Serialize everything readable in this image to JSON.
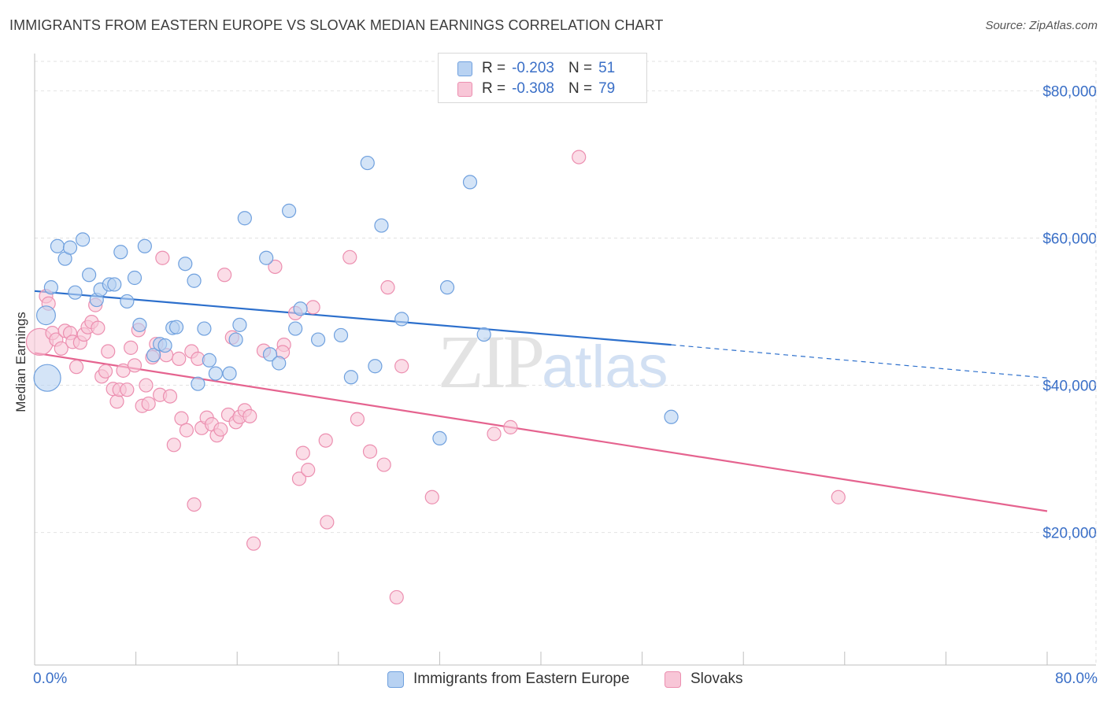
{
  "chart_data": {
    "type": "scatter",
    "title": "IMMIGRANTS FROM EASTERN EUROPE VS SLOVAK MEDIAN EARNINGS CORRELATION CHART",
    "source": "Source: ZipAtlas.com",
    "xlabel": "",
    "ylabel": "Median Earnings",
    "xlim": [
      0,
      80
    ],
    "ylim": [
      2000,
      84000
    ],
    "x_tick_labels": [
      "0.0%",
      "80.0%"
    ],
    "y_ticks": [
      20000,
      40000,
      60000,
      80000
    ],
    "y_tick_labels": [
      "$20,000",
      "$40,000",
      "$60,000",
      "$80,000"
    ],
    "grid": true,
    "legend_position": "top-center",
    "watermark": {
      "zip": "ZIP",
      "atlas": "atlas"
    },
    "series": [
      {
        "name": "Immigrants from Eastern Europe",
        "color": "#6fa0de",
        "fill": "#b8d2f2",
        "R": "-0.203",
        "N": "51",
        "trend": {
          "x0": 0,
          "y0": 52800,
          "x1": 50.3,
          "y1": 45500,
          "dash_to_x": 80,
          "dash_to_y": 41000,
          "color": "#2c6fcc"
        },
        "points": [
          [
            1.0,
            41000,
            2
          ],
          [
            0.9,
            49500,
            1.4
          ],
          [
            1.3,
            53300,
            1
          ],
          [
            1.8,
            58900,
            1
          ],
          [
            2.4,
            57200,
            1
          ],
          [
            2.8,
            58700,
            1
          ],
          [
            3.2,
            52600,
            1
          ],
          [
            3.8,
            59800,
            1
          ],
          [
            4.3,
            55000,
            1
          ],
          [
            4.9,
            51600,
            1
          ],
          [
            5.2,
            53000,
            1
          ],
          [
            5.9,
            53700,
            1
          ],
          [
            6.3,
            53700,
            1
          ],
          [
            6.8,
            58100,
            1
          ],
          [
            7.3,
            51400,
            1
          ],
          [
            7.9,
            54600,
            1
          ],
          [
            8.3,
            48200,
            1
          ],
          [
            8.7,
            58900,
            1
          ],
          [
            9.4,
            44100,
            1
          ],
          [
            9.9,
            45600,
            1
          ],
          [
            10.3,
            45400,
            1
          ],
          [
            10.9,
            47800,
            1
          ],
          [
            11.2,
            47900,
            1
          ],
          [
            11.9,
            56500,
            1
          ],
          [
            12.6,
            54200,
            1
          ],
          [
            12.9,
            40200,
            1
          ],
          [
            13.4,
            47700,
            1
          ],
          [
            13.8,
            43400,
            1
          ],
          [
            14.3,
            41600,
            1
          ],
          [
            15.4,
            41600,
            1
          ],
          [
            15.9,
            46200,
            1
          ],
          [
            16.2,
            48200,
            1
          ],
          [
            16.6,
            62700,
            1
          ],
          [
            18.3,
            57300,
            1
          ],
          [
            18.6,
            44200,
            1
          ],
          [
            19.3,
            43000,
            1
          ],
          [
            20.1,
            63700,
            1
          ],
          [
            20.6,
            47700,
            1
          ],
          [
            21.0,
            50400,
            1
          ],
          [
            22.4,
            46200,
            1
          ],
          [
            24.2,
            46800,
            1
          ],
          [
            25.0,
            41100,
            1
          ],
          [
            26.3,
            70200,
            1
          ],
          [
            26.9,
            42600,
            1
          ],
          [
            27.4,
            61700,
            1
          ],
          [
            29.0,
            49000,
            1
          ],
          [
            32.0,
            32800,
            1
          ],
          [
            32.6,
            53300,
            1
          ],
          [
            34.4,
            67600,
            1
          ],
          [
            35.5,
            46900,
            1
          ],
          [
            50.3,
            35700,
            1
          ]
        ]
      },
      {
        "name": "Slovaks",
        "color": "#ec8fb0",
        "fill": "#f8c6d7",
        "R": "-0.308",
        "N": "79",
        "trend": {
          "x0": 0,
          "y0": 44400,
          "x1": 80,
          "y1": 22900,
          "color": "#e5638f"
        },
        "points": [
          [
            0.4,
            45900,
            2
          ],
          [
            0.9,
            52100,
            1
          ],
          [
            1.1,
            51100,
            1
          ],
          [
            1.4,
            47100,
            1
          ],
          [
            1.7,
            46200,
            1
          ],
          [
            2.1,
            45000,
            1
          ],
          [
            2.4,
            47400,
            1
          ],
          [
            2.8,
            47100,
            1
          ],
          [
            3.0,
            45900,
            1
          ],
          [
            3.3,
            42500,
            1
          ],
          [
            3.6,
            45800,
            1
          ],
          [
            3.9,
            46900,
            1
          ],
          [
            4.2,
            47900,
            1
          ],
          [
            4.5,
            48600,
            1
          ],
          [
            4.8,
            50900,
            1
          ],
          [
            5.0,
            47800,
            1
          ],
          [
            5.3,
            41200,
            1
          ],
          [
            5.6,
            41900,
            1
          ],
          [
            5.8,
            44600,
            1
          ],
          [
            6.2,
            39500,
            1
          ],
          [
            6.5,
            37800,
            1
          ],
          [
            6.7,
            39400,
            1
          ],
          [
            7.0,
            42000,
            1
          ],
          [
            7.3,
            39400,
            1
          ],
          [
            7.6,
            45100,
            1
          ],
          [
            7.9,
            42700,
            1
          ],
          [
            8.2,
            47500,
            1
          ],
          [
            8.5,
            37200,
            1
          ],
          [
            8.8,
            40000,
            1
          ],
          [
            9.0,
            37500,
            1
          ],
          [
            9.3,
            43800,
            1
          ],
          [
            9.6,
            45600,
            1
          ],
          [
            9.9,
            38700,
            1
          ],
          [
            10.1,
            57300,
            1
          ],
          [
            10.4,
            44100,
            1
          ],
          [
            10.7,
            38500,
            1
          ],
          [
            11.0,
            31900,
            1
          ],
          [
            11.4,
            43600,
            1
          ],
          [
            11.6,
            35500,
            1
          ],
          [
            12.0,
            33900,
            1
          ],
          [
            12.4,
            44600,
            1
          ],
          [
            12.6,
            23800,
            1
          ],
          [
            12.9,
            43600,
            1
          ],
          [
            13.2,
            34200,
            1
          ],
          [
            13.6,
            35600,
            1
          ],
          [
            14.0,
            34700,
            1
          ],
          [
            14.4,
            33200,
            1
          ],
          [
            14.7,
            34000,
            1
          ],
          [
            15.0,
            55000,
            1
          ],
          [
            15.3,
            36000,
            1
          ],
          [
            15.6,
            46500,
            1
          ],
          [
            15.9,
            35000,
            1
          ],
          [
            16.2,
            35700,
            1
          ],
          [
            16.6,
            36600,
            1
          ],
          [
            17.0,
            35800,
            1
          ],
          [
            17.3,
            18500,
            1
          ],
          [
            18.1,
            44700,
            1
          ],
          [
            19.0,
            56100,
            1
          ],
          [
            19.7,
            45500,
            1
          ],
          [
            19.6,
            44500,
            1
          ],
          [
            20.9,
            27300,
            1
          ],
          [
            21.2,
            30800,
            1
          ],
          [
            21.6,
            28500,
            1
          ],
          [
            22.0,
            50600,
            1
          ],
          [
            20.6,
            49800,
            1
          ],
          [
            23.0,
            32500,
            1
          ],
          [
            23.1,
            21400,
            1
          ],
          [
            24.9,
            57400,
            1
          ],
          [
            25.5,
            35400,
            1
          ],
          [
            26.5,
            31000,
            1
          ],
          [
            27.6,
            29200,
            1
          ],
          [
            27.9,
            53300,
            1
          ],
          [
            28.6,
            11200,
            1
          ],
          [
            29.0,
            42600,
            1
          ],
          [
            31.4,
            24800,
            1
          ],
          [
            36.3,
            33400,
            1
          ],
          [
            37.6,
            34300,
            1
          ],
          [
            43.0,
            71000,
            1
          ],
          [
            63.5,
            24800,
            1
          ]
        ]
      }
    ]
  },
  "legend": {
    "rows": [
      {
        "r_label": "R = ",
        "r_value": "-0.203",
        "n_label": "N = ",
        "n_value": "51"
      },
      {
        "r_label": "R = ",
        "r_value": "-0.308",
        "n_label": "N = ",
        "n_value": "79"
      }
    ]
  }
}
